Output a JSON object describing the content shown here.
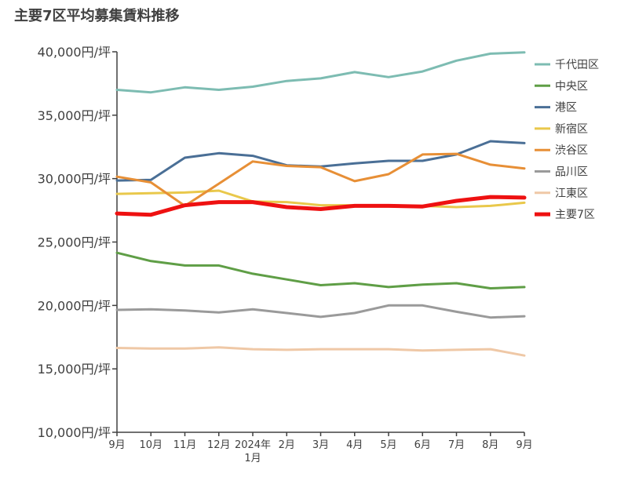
{
  "chart_data": {
    "type": "line",
    "title": "主要7区平均募集賃料推移",
    "x": [
      "9月",
      "10月",
      "11月",
      "12月",
      "2024年\n1月",
      "2月",
      "3月",
      "4月",
      "5月",
      "6月",
      "7月",
      "8月",
      "9月"
    ],
    "y_tick_labels": [
      "40,000円/坪",
      "35,000円/坪",
      "30,000円/坪",
      "25,000円/坪",
      "20,000円/坪",
      "15,000円/坪",
      "10,000円/坪"
    ],
    "y_ticks": [
      40000,
      35000,
      30000,
      25000,
      20000,
      15000,
      10000
    ],
    "ylim": [
      10000,
      40000
    ],
    "legend_position": "right",
    "grid": false,
    "series": [
      {
        "name": "千代田区",
        "color": "#7dbcb2",
        "width": 3,
        "values": [
          37000,
          36800,
          37200,
          37000,
          37250,
          37700,
          37900,
          38400,
          38000,
          38450,
          39300,
          39850,
          39950
        ]
      },
      {
        "name": "中央区",
        "color": "#5f9e46",
        "width": 3,
        "values": [
          24150,
          23500,
          23150,
          23150,
          22500,
          22050,
          21600,
          21750,
          21450,
          21650,
          21750,
          21350,
          21450
        ]
      },
      {
        "name": "港区",
        "color": "#4a6f96",
        "width": 3,
        "values": [
          29850,
          29900,
          31650,
          32000,
          31800,
          31050,
          30950,
          31200,
          31400,
          31400,
          31900,
          32950,
          32800
        ]
      },
      {
        "name": "新宿区",
        "color": "#e9c84b",
        "width": 3,
        "values": [
          28800,
          28850,
          28900,
          29050,
          28200,
          28150,
          27900,
          27900,
          27850,
          27850,
          27750,
          27850,
          28100
        ]
      },
      {
        "name": "渋谷区",
        "color": "#e78f36",
        "width": 3,
        "values": [
          30150,
          29700,
          27850,
          29600,
          31350,
          31000,
          30900,
          29800,
          30350,
          31900,
          31950,
          31100,
          30800
        ]
      },
      {
        "name": "品川区",
        "color": "#9a9a9a",
        "width": 3,
        "values": [
          19650,
          19700,
          19600,
          19450,
          19700,
          19400,
          19100,
          19400,
          20000,
          20000,
          19500,
          19050,
          19150
        ]
      },
      {
        "name": "江東区",
        "color": "#efc8a6",
        "width": 3,
        "values": [
          16650,
          16600,
          16600,
          16700,
          16550,
          16500,
          16550,
          16550,
          16550,
          16450,
          16500,
          16550,
          16050
        ]
      },
      {
        "name": "主要7区",
        "color": "#ee1111",
        "width": 5,
        "values": [
          27250,
          27150,
          27900,
          28150,
          28150,
          27750,
          27600,
          27850,
          27850,
          27800,
          28250,
          28550,
          28500
        ]
      }
    ]
  }
}
